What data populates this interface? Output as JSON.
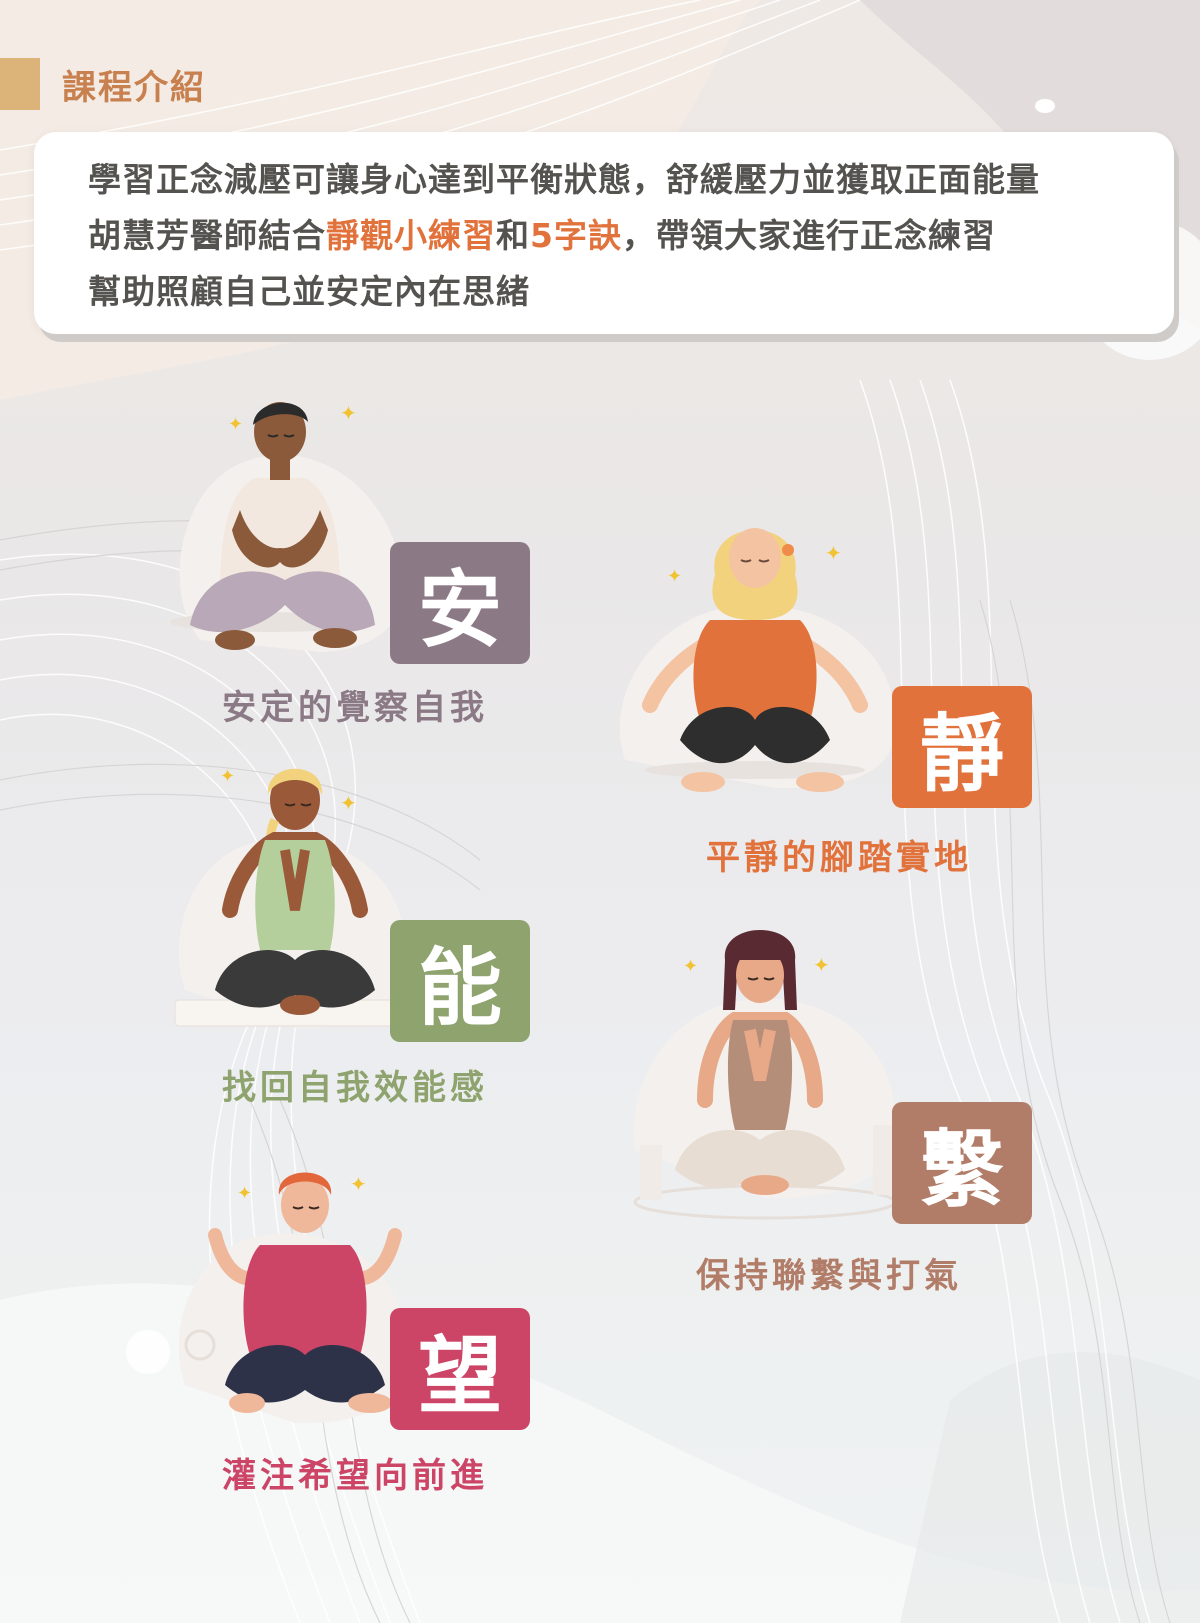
{
  "section": {
    "title": "課程介紹"
  },
  "intro": {
    "line1": "學習正念減壓可讓身心達到平衡狀態，舒緩壓力並獲取正面能量",
    "line2_pre": "胡慧芳醫師結合",
    "line2_hl1": "靜觀小練習",
    "line2_mid": "和",
    "line2_hl2": "5字訣",
    "line2_post": "，帶領大家進行正念練習",
    "line3": "幫助照顧自己並安定內在思緒"
  },
  "keys": [
    {
      "char": "安",
      "caption": "安定的覺察自我",
      "color": "#8b7a86"
    },
    {
      "char": "靜",
      "caption": "平靜的腳踏實地",
      "color": "#e2723c"
    },
    {
      "char": "能",
      "caption": "找回自我效能感",
      "color": "#8ea36e"
    },
    {
      "char": "繫",
      "caption": "保持聯繫與打氣",
      "color": "#b27d68"
    },
    {
      "char": "望",
      "caption": "灌注希望向前進",
      "color": "#cc4466"
    }
  ],
  "colors": {
    "title_orange": "#c8804e",
    "title_bar": "#dcb378",
    "highlight": "#e2723c",
    "body_text": "#55534f"
  }
}
